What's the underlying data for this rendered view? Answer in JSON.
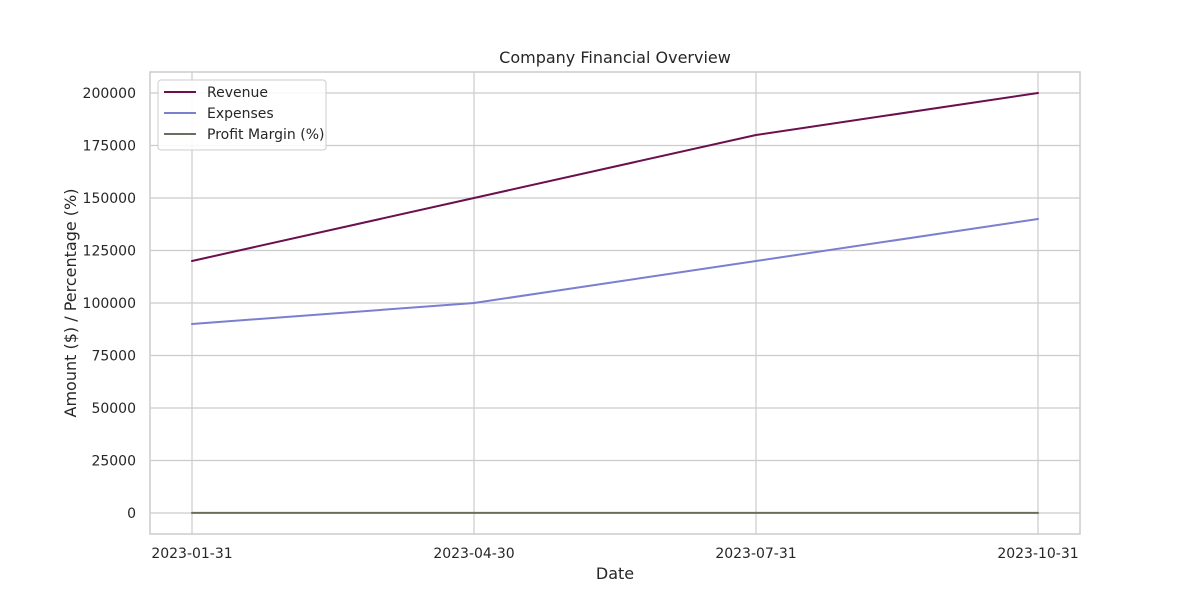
{
  "chart_data": {
    "type": "line",
    "title": "Company Financial Overview",
    "xlabel": "Date",
    "ylabel": "Amount ($) / Percentage (%)",
    "x": [
      "2023-01-31",
      "2023-04-30",
      "2023-07-31",
      "2023-10-31"
    ],
    "ylim": [
      -10000,
      210000
    ],
    "yticks": [
      0,
      25000,
      50000,
      75000,
      100000,
      125000,
      150000,
      175000,
      200000
    ],
    "grid": true,
    "legend_position": "top-left",
    "series": [
      {
        "name": "Revenue",
        "color": "#6b0f4e",
        "values": [
          120000,
          150000,
          180000,
          200000
        ]
      },
      {
        "name": "Expenses",
        "color": "#7b7fd0",
        "values": [
          90000,
          100000,
          120000,
          140000
        ]
      },
      {
        "name": "Profit Margin (%)",
        "color": "#6b6e5a",
        "values": [
          25,
          33.3,
          33.3,
          30
        ]
      }
    ]
  }
}
